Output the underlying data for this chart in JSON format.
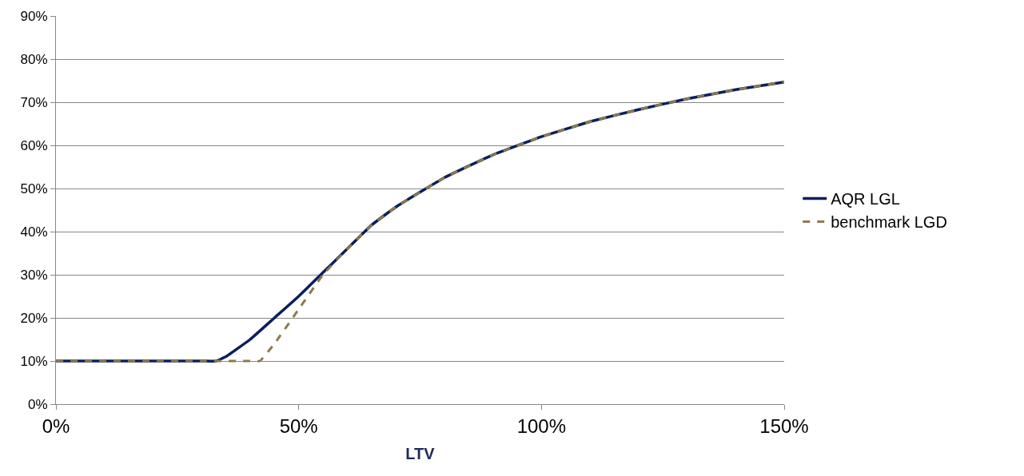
{
  "chart_data": {
    "type": "line",
    "xlabel": "LTV",
    "xlim": [
      0,
      150
    ],
    "xticks": [
      {
        "value": 0,
        "label": "0%"
      },
      {
        "value": 50,
        "label": "50%"
      },
      {
        "value": 100,
        "label": "100%"
      },
      {
        "value": 150,
        "label": "150%"
      }
    ],
    "ylim": [
      0,
      90
    ],
    "yticks": [
      {
        "value": 0,
        "label": "0%"
      },
      {
        "value": 10,
        "label": "10%"
      },
      {
        "value": 20,
        "label": "20%"
      },
      {
        "value": 30,
        "label": "30%"
      },
      {
        "value": 40,
        "label": "40%"
      },
      {
        "value": 50,
        "label": "50%"
      },
      {
        "value": 60,
        "label": "60%"
      },
      {
        "value": 70,
        "label": "70%"
      },
      {
        "value": 80,
        "label": "80%"
      },
      {
        "value": 90,
        "label": "90%"
      }
    ],
    "grid": "y",
    "legend": "right",
    "marker": "none",
    "series": [
      {
        "name": "AQR LGL",
        "color": "#0a1f5c",
        "line_style": "solid",
        "x": [
          0,
          10,
          20,
          30,
          33,
          35,
          40,
          45,
          50,
          55,
          60,
          65,
          70,
          80,
          90,
          100,
          110,
          120,
          130,
          140,
          150
        ],
        "values": [
          10,
          10,
          10,
          10,
          10,
          11,
          15,
          20,
          25,
          30.5,
          36,
          41.5,
          45.7,
          52.5,
          57.8,
          62,
          65.5,
          68.3,
          70.8,
          72.9,
          74.7
        ]
      },
      {
        "name": "benchmark LGD",
        "color": "#8c7b4f",
        "line_style": "dashed",
        "x": [
          0,
          10,
          20,
          30,
          40,
          42,
          45,
          50,
          55,
          60,
          65,
          70,
          80,
          90,
          100,
          110,
          120,
          130,
          140,
          150
        ],
        "values": [
          10,
          10,
          10,
          10,
          10,
          10,
          14,
          22,
          30,
          36,
          41.5,
          45.7,
          52.5,
          57.8,
          62,
          65.5,
          68.3,
          70.8,
          72.9,
          74.7
        ]
      }
    ]
  }
}
